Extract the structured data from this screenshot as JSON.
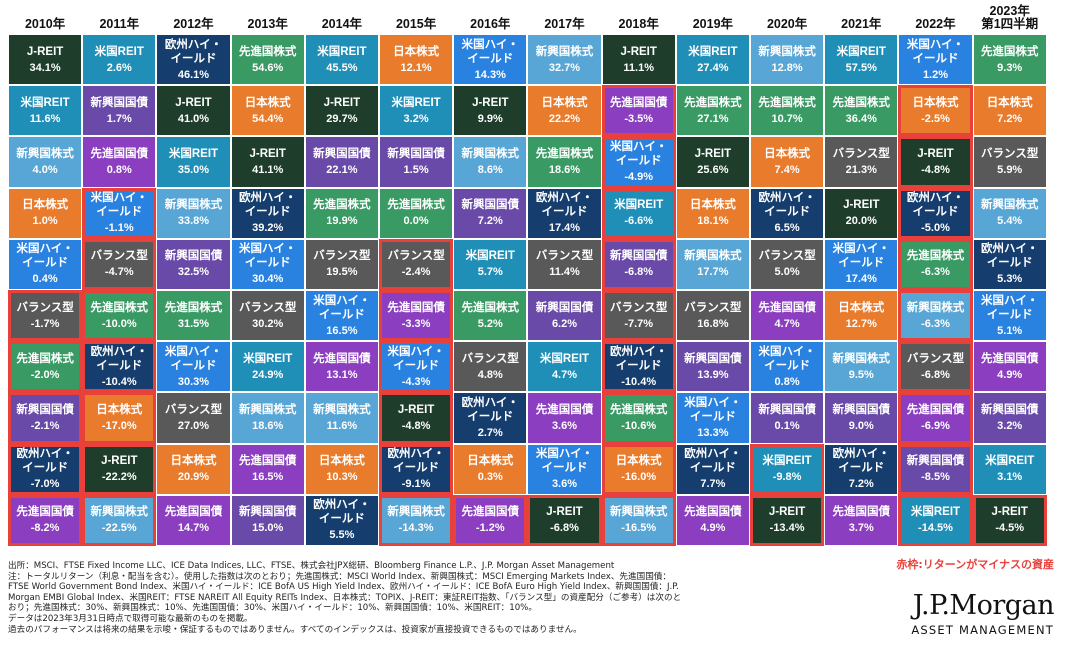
{
  "legend_note": "赤枠:リターンがマイナスの資産",
  "colors": {
    "J-REIT": "#1e3d2b",
    "米国REIT": "#1f8fb8",
    "欧州ハイ・イールド": "#153d6e",
    "先進国株式": "#3a9a64",
    "日本株式": "#e87b2c",
    "新興国株式": "#58a6d6",
    "新興国国債": "#6a4aa8",
    "米国ハイ・イールド": "#2a82e0",
    "バランス型": "#595959",
    "先進国国債": "#8b3fc0",
    "negative_border": "#e8413c"
  },
  "chart_data": {
    "type": "table",
    "columns": [
      "2010年",
      "2011年",
      "2012年",
      "2013年",
      "2014年",
      "2015年",
      "2016年",
      "2017年",
      "2018年",
      "2019年",
      "2020年",
      "2021年",
      "2022年",
      "2023年\n第1四半期"
    ],
    "cells": [
      [
        [
          "J-REIT",
          "34.1%"
        ],
        [
          "米国REIT",
          "2.6%"
        ],
        [
          "欧州ハイ・イールド",
          "46.1%"
        ],
        [
          "先進国株式",
          "54.6%"
        ],
        [
          "米国REIT",
          "45.5%"
        ],
        [
          "日本株式",
          "12.1%"
        ],
        [
          "米国ハイ・イールド",
          "14.3%"
        ],
        [
          "新興国株式",
          "32.7%"
        ],
        [
          "J-REIT",
          "11.1%"
        ],
        [
          "米国REIT",
          "27.4%"
        ],
        [
          "新興国株式",
          "12.8%"
        ],
        [
          "米国REIT",
          "57.5%"
        ],
        [
          "米国ハイ・イールド",
          "1.2%"
        ],
        [
          "先進国株式",
          "9.3%"
        ]
      ],
      [
        [
          "米国REIT",
          "11.6%"
        ],
        [
          "新興国国債",
          "1.7%"
        ],
        [
          "J-REIT",
          "41.0%"
        ],
        [
          "日本株式",
          "54.4%"
        ],
        [
          "J-REIT",
          "29.7%"
        ],
        [
          "米国REIT",
          "3.2%"
        ],
        [
          "J-REIT",
          "9.9%"
        ],
        [
          "日本株式",
          "22.2%"
        ],
        [
          "先進国国債",
          "-3.5%"
        ],
        [
          "先進国株式",
          "27.1%"
        ],
        [
          "先進国株式",
          "10.7%"
        ],
        [
          "先進国株式",
          "36.4%"
        ],
        [
          "日本株式",
          "-2.5%"
        ],
        [
          "日本株式",
          "7.2%"
        ]
      ],
      [
        [
          "新興国株式",
          "4.0%"
        ],
        [
          "先進国国債",
          "0.8%"
        ],
        [
          "米国REIT",
          "35.0%"
        ],
        [
          "J-REIT",
          "41.1%"
        ],
        [
          "新興国国債",
          "22.1%"
        ],
        [
          "新興国国債",
          "1.5%"
        ],
        [
          "新興国株式",
          "8.6%"
        ],
        [
          "先進国株式",
          "18.6%"
        ],
        [
          "米国ハイ・イールド",
          "-4.9%"
        ],
        [
          "J-REIT",
          "25.6%"
        ],
        [
          "日本株式",
          "7.4%"
        ],
        [
          "バランス型",
          "21.3%"
        ],
        [
          "J-REIT",
          "-4.8%"
        ],
        [
          "バランス型",
          "5.9%"
        ]
      ],
      [
        [
          "日本株式",
          "1.0%"
        ],
        [
          "米国ハイ・イールド",
          "-1.1%"
        ],
        [
          "新興国株式",
          "33.8%"
        ],
        [
          "欧州ハイ・イールド",
          "39.2%"
        ],
        [
          "先進国株式",
          "19.9%"
        ],
        [
          "先進国株式",
          "0.0%"
        ],
        [
          "新興国国債",
          "7.2%"
        ],
        [
          "欧州ハイ・イールド",
          "17.4%"
        ],
        [
          "米国REIT",
          "-6.6%"
        ],
        [
          "日本株式",
          "18.1%"
        ],
        [
          "欧州ハイ・イールド",
          "6.5%"
        ],
        [
          "J-REIT",
          "20.0%"
        ],
        [
          "欧州ハイ・イールド",
          "-5.0%"
        ],
        [
          "新興国株式",
          "5.4%"
        ]
      ],
      [
        [
          "米国ハイ・イールド",
          "0.4%"
        ],
        [
          "バランス型",
          "-4.7%"
        ],
        [
          "新興国国債",
          "32.5%"
        ],
        [
          "米国ハイ・イールド",
          "30.4%"
        ],
        [
          "バランス型",
          "19.5%"
        ],
        [
          "バランス型",
          "-2.4%"
        ],
        [
          "米国REIT",
          "5.7%"
        ],
        [
          "バランス型",
          "11.4%"
        ],
        [
          "新興国国債",
          "-6.8%"
        ],
        [
          "新興国株式",
          "17.7%"
        ],
        [
          "バランス型",
          "5.0%"
        ],
        [
          "米国ハイ・イールド",
          "17.4%"
        ],
        [
          "先進国株式",
          "-6.3%"
        ],
        [
          "欧州ハイ・イールド",
          "5.3%"
        ]
      ],
      [
        [
          "バランス型",
          "-1.7%"
        ],
        [
          "先進国株式",
          "-10.0%"
        ],
        [
          "先進国株式",
          "31.5%"
        ],
        [
          "バランス型",
          "30.2%"
        ],
        [
          "米国ハイ・イールド",
          "16.5%"
        ],
        [
          "先進国国債",
          "-3.3%"
        ],
        [
          "先進国株式",
          "5.2%"
        ],
        [
          "新興国国債",
          "6.2%"
        ],
        [
          "バランス型",
          "-7.7%"
        ],
        [
          "バランス型",
          "16.8%"
        ],
        [
          "先進国国債",
          "4.7%"
        ],
        [
          "日本株式",
          "12.7%"
        ],
        [
          "新興国株式",
          "-6.3%"
        ],
        [
          "米国ハイ・イールド",
          "5.1%"
        ]
      ],
      [
        [
          "先進国株式",
          "-2.0%"
        ],
        [
          "欧州ハイ・イールド",
          "-10.4%"
        ],
        [
          "米国ハイ・イールド",
          "30.3%"
        ],
        [
          "米国REIT",
          "24.9%"
        ],
        [
          "先進国国債",
          "13.1%"
        ],
        [
          "米国ハイ・イールド",
          "-4.3%"
        ],
        [
          "バランス型",
          "4.8%"
        ],
        [
          "米国REIT",
          "4.7%"
        ],
        [
          "欧州ハイ・イールド",
          "-10.4%"
        ],
        [
          "新興国国債",
          "13.9%"
        ],
        [
          "米国ハイ・イールド",
          "0.8%"
        ],
        [
          "新興国株式",
          "9.5%"
        ],
        [
          "バランス型",
          "-6.8%"
        ],
        [
          "先進国国債",
          "4.9%"
        ]
      ],
      [
        [
          "新興国国債",
          "-2.1%"
        ],
        [
          "日本株式",
          "-17.0%"
        ],
        [
          "バランス型",
          "27.0%"
        ],
        [
          "新興国株式",
          "18.6%"
        ],
        [
          "新興国株式",
          "11.6%"
        ],
        [
          "J-REIT",
          "-4.8%"
        ],
        [
          "欧州ハイ・イールド",
          "2.7%"
        ],
        [
          "先進国国債",
          "3.6%"
        ],
        [
          "先進国株式",
          "-10.6%"
        ],
        [
          "米国ハイ・イールド",
          "13.3%"
        ],
        [
          "新興国国債",
          "0.1%"
        ],
        [
          "新興国国債",
          "9.0%"
        ],
        [
          "先進国国債",
          "-6.9%"
        ],
        [
          "新興国国債",
          "3.2%"
        ]
      ],
      [
        [
          "欧州ハイ・イールド",
          "-7.0%"
        ],
        [
          "J-REIT",
          "-22.2%"
        ],
        [
          "日本株式",
          "20.9%"
        ],
        [
          "先進国国債",
          "16.5%"
        ],
        [
          "日本株式",
          "10.3%"
        ],
        [
          "欧州ハイ・イールド",
          "-9.1%"
        ],
        [
          "日本株式",
          "0.3%"
        ],
        [
          "米国ハイ・イールド",
          "3.6%"
        ],
        [
          "日本株式",
          "-16.0%"
        ],
        [
          "欧州ハイ・イールド",
          "7.7%"
        ],
        [
          "米国REIT",
          "-9.8%"
        ],
        [
          "欧州ハイ・イールド",
          "7.2%"
        ],
        [
          "新興国国債",
          "-8.5%"
        ],
        [
          "米国REIT",
          "3.1%"
        ]
      ],
      [
        [
          "先進国国債",
          "-8.2%"
        ],
        [
          "新興国株式",
          "-22.5%"
        ],
        [
          "先進国国債",
          "14.7%"
        ],
        [
          "新興国国債",
          "15.0%"
        ],
        [
          "欧州ハイ・イールド",
          "5.5%"
        ],
        [
          "新興国株式",
          "-14.3%"
        ],
        [
          "先進国国債",
          "-1.2%"
        ],
        [
          "J-REIT",
          "-6.8%"
        ],
        [
          "新興国株式",
          "-16.5%"
        ],
        [
          "先進国国債",
          "4.9%"
        ],
        [
          "J-REIT",
          "-13.4%"
        ],
        [
          "先進国国債",
          "3.7%"
        ],
        [
          "米国REIT",
          "-14.5%"
        ],
        [
          "J-REIT",
          "-4.5%"
        ]
      ]
    ]
  },
  "notes": [
    "出所：MSCI、FTSE Fixed Income LLC、ICE Data Indices, LLC、FTSE、株式会社JPX総研、Bloomberg Finance L.P.、J.P. Morgan Asset Management",
    "注：トータルリターン（利息・配当を含む）。使用した指数は次のとおり；先進国株式：MSCI World Index、新興国株式：MSCI Emerging Markets Index、先進国国債：",
    "FTSE World Government Bond Index、米国ハイ・イールド：ICE BofA US High Yield Index、欧州ハイ・イールド：ICE BofA Euro High Yield Index、新興国国債：J.P.",
    "Morgan EMBI Global Index、米国REIT：FTSE NAREIT All Equity REITs Index、日本株式：TOPIX、J-REIT：東証REIT指数、「バランス型」の資産配分（ご参考）は次のと",
    "おり；先進国株式：30%、新興国株式：10%、先進国国債：30%、米国ハイ・イールド：10%、新興国国債：10%、米国REIT：10%。",
    "データは2023年3月31日時点で取得可能な最新のものを掲載。",
    "過去のパフォーマンスは将来の結果を示唆・保証するものではありません。すべてのインデックスは、投資家が直接投資できるものではありません。"
  ],
  "brand": {
    "name": "J.P.Morgan",
    "sub": "ASSET MANAGEMENT"
  }
}
